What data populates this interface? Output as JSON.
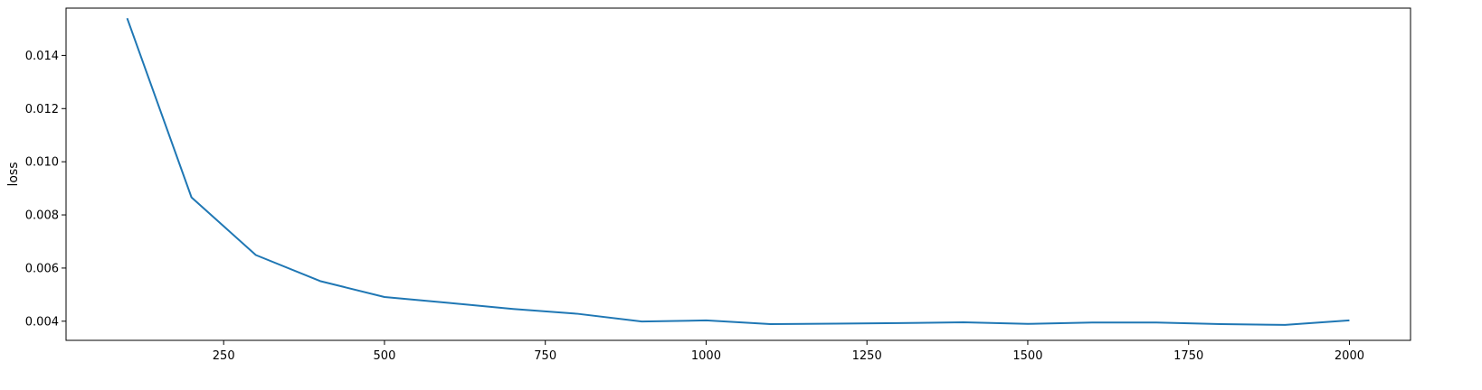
{
  "chart_data": {
    "type": "line",
    "title": "",
    "xlabel": "",
    "ylabel": "loss",
    "xlim": [
      5,
      2095
    ],
    "ylim": [
      0.00328,
      0.01578
    ],
    "x_ticks": [
      250,
      500,
      750,
      1000,
      1250,
      1500,
      1750,
      2000
    ],
    "y_ticks": [
      0.004,
      0.006,
      0.008,
      0.01,
      0.012,
      0.014
    ],
    "x_tick_labels": [
      "250",
      "500",
      "750",
      "1000",
      "1250",
      "1500",
      "1750",
      "2000"
    ],
    "y_tick_labels": [
      "0.004",
      "0.006",
      "0.008",
      "0.010",
      "0.012",
      "0.014"
    ],
    "grid": false,
    "legend": "none",
    "series": [
      {
        "color": "#1f77b4",
        "x": [
          100,
          200,
          300,
          400,
          500,
          600,
          700,
          800,
          900,
          1000,
          1100,
          1200,
          1300,
          1400,
          1500,
          1600,
          1700,
          1800,
          1900,
          2000
        ],
        "y": [
          0.0154,
          0.00866,
          0.00649,
          0.00551,
          0.00491,
          0.00469,
          0.00446,
          0.00428,
          0.00399,
          0.00403,
          0.00389,
          0.00391,
          0.00393,
          0.00396,
          0.0039,
          0.00395,
          0.00395,
          0.00389,
          0.00386,
          0.00403
        ]
      }
    ]
  }
}
